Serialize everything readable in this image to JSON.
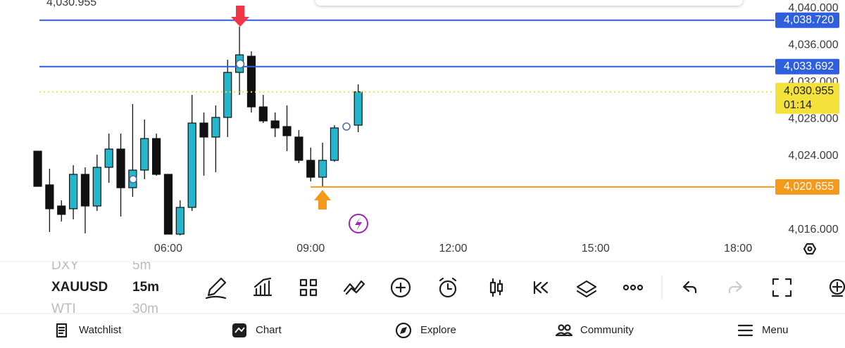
{
  "chart_data": {
    "type": "candlestick",
    "x": [
      3.25,
      3.5,
      3.75,
      4,
      4.25,
      4.5,
      4.75,
      5,
      5.25,
      5.5,
      5.75,
      6,
      6.25,
      6.5,
      6.75,
      7,
      7.25,
      7.5,
      7.75,
      8,
      8.25,
      8.5,
      8.75,
      9,
      9.25,
      9.5,
      10
    ],
    "open": [
      4024.53,
      4020.88,
      4018.59,
      4018.29,
      4022.02,
      4018.59,
      4022.78,
      4024.76,
      4020.57,
      4022.48,
      4025.9,
      4022.02,
      4015.54,
      4018.44,
      4027.58,
      4026.06,
      4028.19,
      4033.07,
      4034.82,
      4029.33,
      4027.81,
      4027.2,
      4026.06,
      4023.54,
      4021.71,
      4023.54,
      4027.35
    ],
    "high": [
      4024.53,
      4022.63,
      4019.2,
      4023.01,
      4022.78,
      4024.15,
      4026.44,
      4026.44,
      4029.64,
      4027.96,
      4026.44,
      4022.02,
      4019.2,
      4030.63,
      4028.72,
      4029.49,
      4034.44,
      4038.02,
      4035.35,
      4030.63,
      4028.72,
      4029.49,
      4026.82,
      4024.91,
      4025.45,
      4027.35,
      4031.77
    ],
    "low": [
      4020.72,
      4015.77,
      4016.91,
      4017.14,
      4015.62,
      4018.06,
      4021.1,
      4017.45,
      4019.58,
      4021.49,
      4021.87,
      4015.54,
      4015.4,
      4018.06,
      4021.87,
      4022.25,
      4026.06,
      4030.63,
      4028.72,
      4027.58,
      4026.06,
      4024.53,
      4023.24,
      4021.26,
      4020.655,
      4023.39,
      4026.59
    ],
    "close": [
      4020.72,
      4018.29,
      4017.68,
      4022.02,
      4018.59,
      4022.78,
      4024.76,
      4020.57,
      4022.48,
      4025.9,
      4022.02,
      4015.54,
      4018.44,
      4027.58,
      4026.06,
      4028.19,
      4033.07,
      4034.97,
      4029.33,
      4027.81,
      4027.05,
      4026.21,
      4023.54,
      4021.71,
      4023.54,
      4027.05,
      4030.955
    ],
    "up_color": "#26b6cb",
    "down_color": "#111111",
    "xlim": [
      2.456,
      18.77
    ],
    "xticks": [
      {
        "value": 6,
        "label": "06:00"
      },
      {
        "value": 9,
        "label": "09:00"
      },
      {
        "value": 12,
        "label": "12:00"
      },
      {
        "value": 15,
        "label": "15:00"
      },
      {
        "value": 18,
        "label": "18:00"
      }
    ],
    "ylim": [
      4015.01,
      4040.914
    ],
    "yticks": [
      {
        "value": 4040,
        "label": "4,040.000"
      },
      {
        "value": 4036,
        "label": "4,036.000"
      },
      {
        "value": 4032,
        "label": "4,032.000"
      },
      {
        "value": 4028,
        "label": "4,028.000"
      },
      {
        "value": 4024,
        "label": "4,024.000"
      },
      {
        "value": 4016,
        "label": "4,016.000"
      }
    ],
    "grid": false,
    "lines": [
      {
        "value": 4038.72,
        "label": "4,038.720",
        "color": "#2f5fdc",
        "style": "solid"
      },
      {
        "value": 4033.692,
        "label": "4,033.692",
        "color": "#2f5fdc",
        "style": "solid"
      },
      {
        "value": 4030.955,
        "label": "4,030.955",
        "color": "#f4e23a",
        "style": "dotted",
        "countdown": "01:14"
      },
      {
        "value": 4020.655,
        "label": "4,020.655",
        "color": "#f39a1c",
        "style": "solid"
      }
    ]
  },
  "symbols": [
    {
      "name": "DXY",
      "interval": "5m"
    },
    {
      "name": "XAUUSD",
      "interval": "15m"
    },
    {
      "name": "WTI",
      "interval": "30m"
    }
  ],
  "nav": [
    "Watchlist",
    "Chart",
    "Explore",
    "Community",
    "Menu"
  ]
}
